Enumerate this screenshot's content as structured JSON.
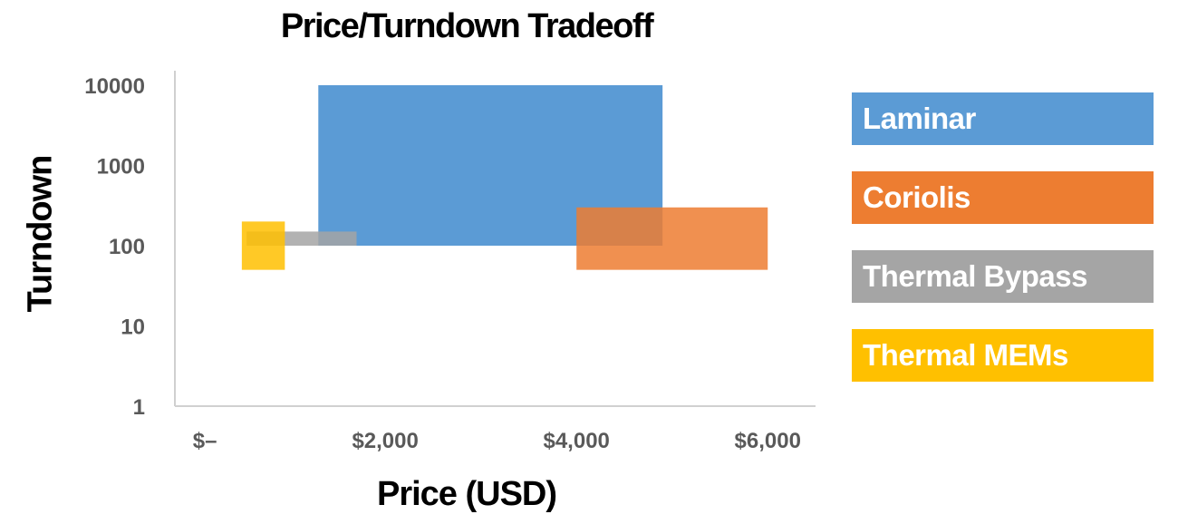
{
  "chart_data": {
    "type": "bar",
    "title": "Price/Turndown Tradeoff",
    "xlabel": "Price (USD)",
    "ylabel": "Turndown",
    "x_ticks": [
      "$–",
      "$2,000",
      "$4,000",
      "$6,000"
    ],
    "x_tick_values": [
      0,
      2000,
      4000,
      6000
    ],
    "y_ticks": [
      "1",
      "10",
      "100",
      "1000",
      "10000"
    ],
    "y_tick_values": [
      1,
      10,
      100,
      1000,
      10000
    ],
    "y_scale": "log",
    "xlim": [
      -200,
      6500
    ],
    "ylim": [
      1,
      10000
    ],
    "grid": false,
    "legend_position": "right",
    "series": [
      {
        "name": "Laminar",
        "color": "#5b9bd5",
        "x_range": [
          1300,
          4900
        ],
        "y_range": [
          100,
          10000
        ]
      },
      {
        "name": "Coriolis",
        "color": "#ed7d31",
        "x_range": [
          4000,
          6000
        ],
        "y_range": [
          50,
          300
        ]
      },
      {
        "name": "Thermal Bypass",
        "color": "#a5a5a5",
        "x_range": [
          550,
          1700
        ],
        "y_range": [
          100,
          150
        ]
      },
      {
        "name": "Thermal MEMs",
        "color": "#ffc000",
        "x_range": [
          500,
          950
        ],
        "y_range": [
          50,
          200
        ]
      }
    ]
  }
}
